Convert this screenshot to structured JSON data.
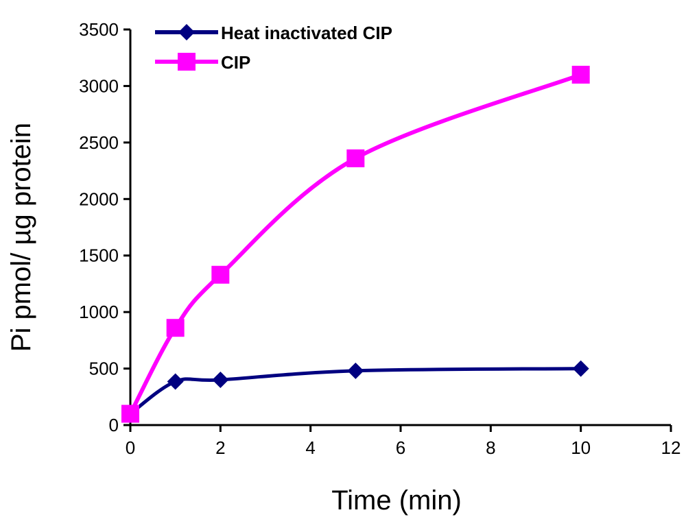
{
  "chart_data": {
    "type": "line",
    "xlabel": "Time (min)",
    "ylabel": "Pi pmol/ µg protein",
    "xlim": [
      0,
      12
    ],
    "ylim": [
      0,
      3500
    ],
    "xticks": [
      "0",
      "2",
      "4",
      "6",
      "8",
      "10",
      "12"
    ],
    "yticks": [
      "0",
      "500",
      "1000",
      "1500",
      "2000",
      "2500",
      "3000",
      "3500"
    ],
    "grid": false,
    "legend_position": "top-left",
    "series": [
      {
        "name": "Heat inactivated CIP",
        "color": "#000080",
        "marker": "diamond",
        "x": [
          0,
          1,
          2,
          5,
          10
        ],
        "y": [
          100,
          385,
          400,
          480,
          500
        ]
      },
      {
        "name": "CIP",
        "color": "#ff00ff",
        "marker": "square",
        "x": [
          0,
          1,
          2,
          5,
          10
        ],
        "y": [
          100,
          860,
          1330,
          2360,
          3100
        ]
      }
    ]
  }
}
